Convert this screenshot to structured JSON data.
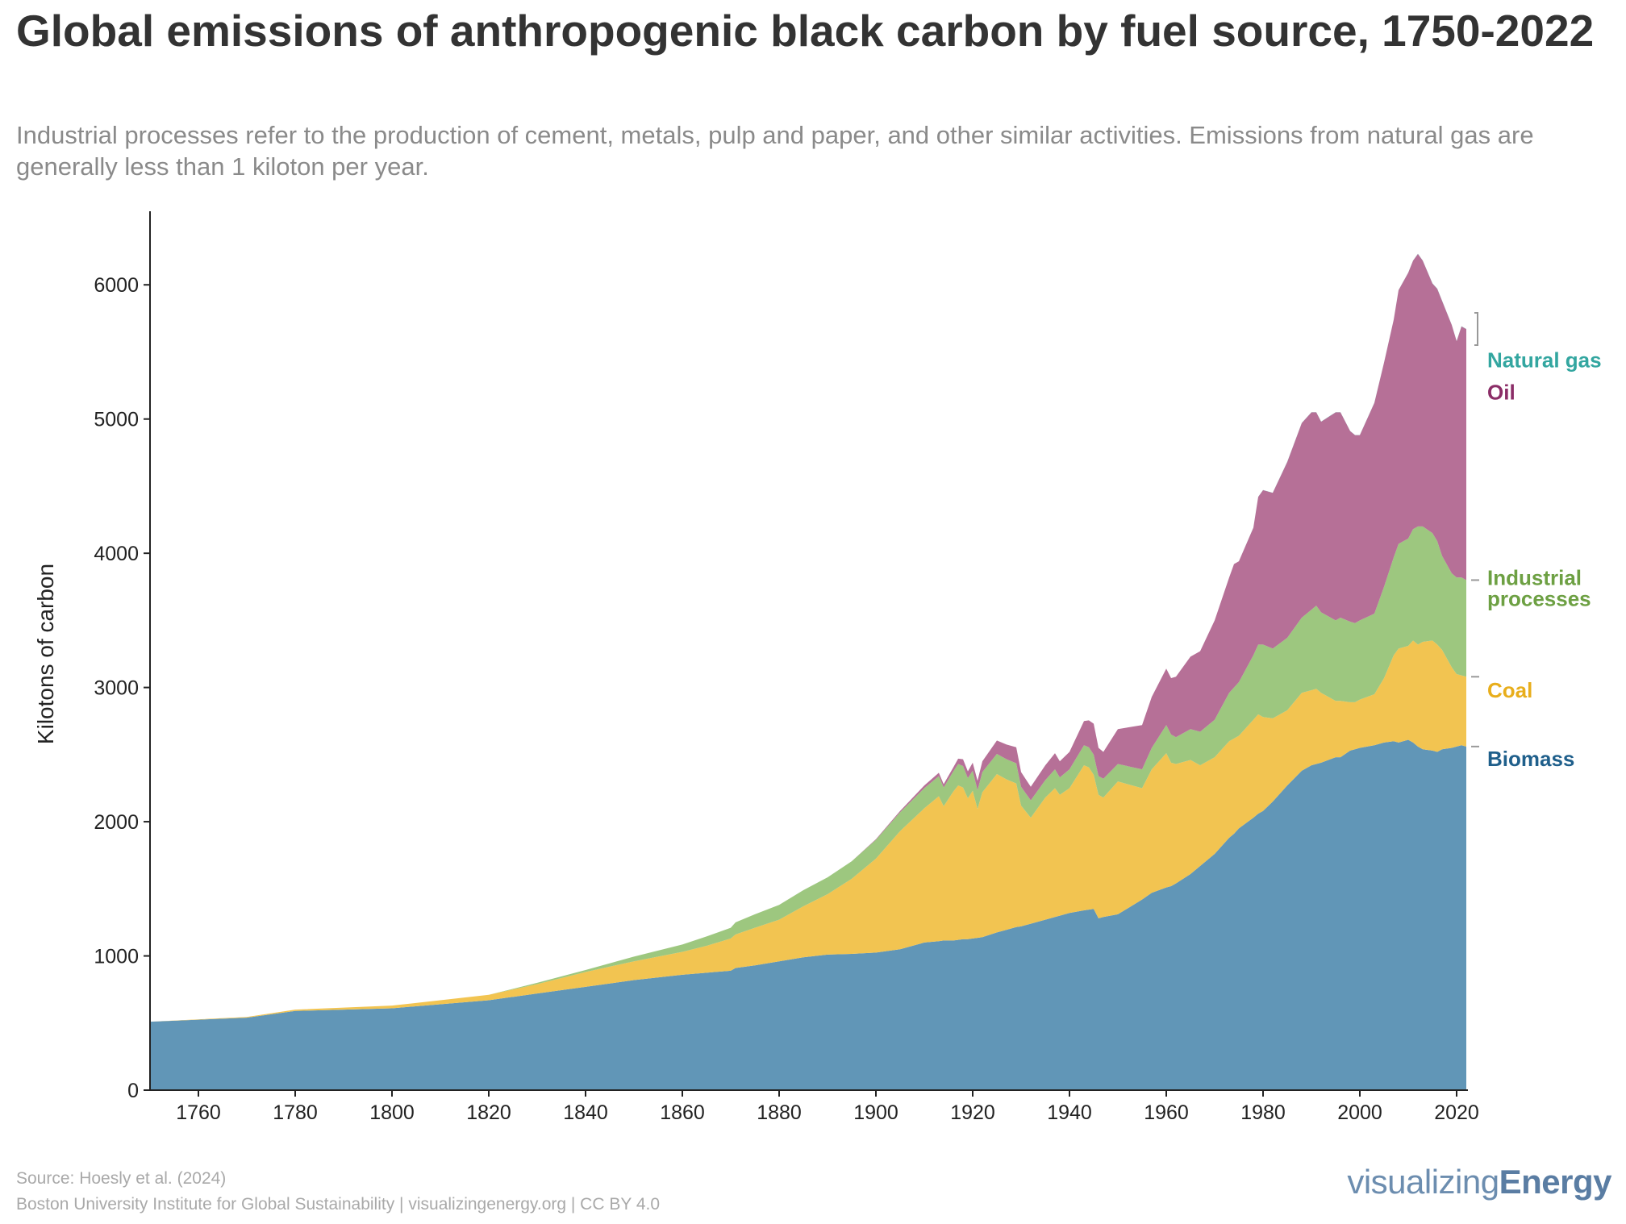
{
  "header": {
    "title": "Global emissions of anthropogenic black carbon by fuel source, 1750-2022",
    "subtitle": "Industrial processes refer to the production of cement, metals, pulp and paper, and other similar activities. Emissions from natural gas are generally less than 1 kiloton per year."
  },
  "footer": {
    "source": "Source: Hoesly et al. (2024)",
    "credit": "Boston University Institute for Global Sustainability | visualizingenergy.org | CC BY 4.0",
    "brand_light": "visualizing",
    "brand_bold": "Energy"
  },
  "colors": {
    "biomass": "#6196b7",
    "coal": "#f2c451",
    "industrial": "#9dc77f",
    "oil": "#b67097",
    "natural_gas": "#43a8a2",
    "label_biomass": "#1f5f8b",
    "label_coal": "#e8ae1c",
    "label_industrial": "#6da043",
    "label_oil": "#8b2d67",
    "label_natural_gas": "#33a6a0"
  },
  "chart_data": {
    "type": "area",
    "stacked": true,
    "xlim": [
      1750,
      2022
    ],
    "ylim": [
      0,
      6500
    ],
    "ylabel": "Kilotons of carbon",
    "xlabel": "",
    "x_ticks": [
      1760,
      1780,
      1800,
      1820,
      1840,
      1860,
      1880,
      1900,
      1920,
      1940,
      1960,
      1980,
      2000,
      2020
    ],
    "y_ticks": [
      0,
      1000,
      2000,
      3000,
      4000,
      5000,
      6000
    ],
    "x": [
      1750,
      1770,
      1780,
      1800,
      1820,
      1830,
      1840,
      1850,
      1860,
      1865,
      1870,
      1871,
      1875,
      1880,
      1885,
      1890,
      1895,
      1900,
      1905,
      1910,
      1913,
      1914,
      1916,
      1917,
      1918,
      1919,
      1920,
      1921,
      1922,
      1925,
      1927,
      1929,
      1930,
      1932,
      1935,
      1937,
      1938,
      1940,
      1943,
      1944,
      1945,
      1946,
      1947,
      1950,
      1955,
      1957,
      1960,
      1961,
      1962,
      1965,
      1967,
      1970,
      1973,
      1974,
      1975,
      1978,
      1979,
      1980,
      1982,
      1985,
      1988,
      1990,
      1991,
      1992,
      1995,
      1996,
      1998,
      1999,
      2000,
      2003,
      2005,
      2007,
      2008,
      2010,
      2011,
      2012,
      2013,
      2015,
      2016,
      2017,
      2019,
      2020,
      2021,
      2022
    ],
    "series": [
      {
        "name": "Biomass",
        "key": "biomass",
        "values": [
          510,
          540,
          590,
          610,
          670,
          720,
          770,
          820,
          860,
          875,
          890,
          910,
          930,
          960,
          990,
          1010,
          1015,
          1025,
          1050,
          1100,
          1110,
          1115,
          1115,
          1120,
          1125,
          1125,
          1130,
          1135,
          1140,
          1175,
          1195,
          1215,
          1220,
          1240,
          1270,
          1290,
          1300,
          1320,
          1340,
          1345,
          1350,
          1280,
          1290,
          1310,
          1420,
          1470,
          1510,
          1520,
          1540,
          1610,
          1670,
          1760,
          1880,
          1910,
          1950,
          2030,
          2060,
          2080,
          2150,
          2270,
          2380,
          2420,
          2430,
          2440,
          2480,
          2480,
          2530,
          2540,
          2550,
          2570,
          2590,
          2600,
          2590,
          2610,
          2590,
          2560,
          2540,
          2530,
          2520,
          2540,
          2550,
          2560,
          2570,
          2560
        ],
        "label": "Biomass",
        "label_y": 2470
      },
      {
        "name": "Coal",
        "key": "coal",
        "values": [
          0,
          5,
          10,
          20,
          40,
          70,
          110,
          140,
          170,
          200,
          240,
          250,
          280,
          310,
          380,
          450,
          560,
          700,
          880,
          1000,
          1080,
          1000,
          1110,
          1150,
          1130,
          1050,
          1100,
          960,
          1080,
          1180,
          1120,
          1070,
          900,
          790,
          910,
          960,
          900,
          930,
          1080,
          1060,
          1000,
          920,
          890,
          990,
          830,
          920,
          1000,
          920,
          890,
          850,
          750,
          720,
          720,
          710,
          690,
          730,
          740,
          700,
          620,
          560,
          580,
          560,
          560,
          520,
          420,
          420,
          360,
          350,
          360,
          380,
          480,
          640,
          700,
          700,
          760,
          760,
          800,
          820,
          800,
          740,
          600,
          540,
          520,
          520
        ],
        "label": "Coal",
        "label_y": 2980
      },
      {
        "name": "Industrial processes",
        "key": "industrial",
        "values": [
          0,
          0,
          0,
          0,
          0,
          10,
          15,
          35,
          55,
          70,
          80,
          90,
          100,
          110,
          120,
          125,
          130,
          140,
          140,
          150,
          150,
          140,
          150,
          160,
          160,
          150,
          150,
          140,
          150,
          150,
          150,
          150,
          140,
          130,
          130,
          140,
          130,
          140,
          150,
          150,
          150,
          140,
          140,
          130,
          140,
          160,
          210,
          210,
          200,
          230,
          250,
          280,
          360,
          380,
          400,
          480,
          520,
          540,
          520,
          540,
          560,
          600,
          620,
          600,
          600,
          620,
          600,
          590,
          590,
          600,
          680,
          730,
          780,
          800,
          830,
          880,
          860,
          800,
          770,
          700,
          700,
          720,
          730,
          720
        ],
        "label": "Industrial processes",
        "label_y": 3740
      },
      {
        "name": "Oil",
        "key": "oil",
        "values": [
          0,
          0,
          0,
          0,
          0,
          0,
          0,
          0,
          0,
          0,
          0,
          0,
          0,
          0,
          0,
          0,
          0,
          5,
          10,
          20,
          25,
          25,
          30,
          40,
          50,
          50,
          60,
          70,
          80,
          100,
          110,
          120,
          110,
          100,
          110,
          120,
          120,
          130,
          180,
          200,
          230,
          210,
          200,
          260,
          330,
          380,
          420,
          420,
          450,
          540,
          600,
          740,
          860,
          920,
          900,
          950,
          1100,
          1150,
          1160,
          1310,
          1450,
          1470,
          1440,
          1420,
          1550,
          1530,
          1420,
          1400,
          1380,
          1570,
          1670,
          1770,
          1890,
          1980,
          2000,
          2030,
          1980,
          1860,
          1880,
          1900,
          1850,
          1760,
          1870,
          1870
        ],
        "label": "Oil",
        "label_y": 5200
      },
      {
        "name": "Natural gas",
        "key": "natural_gas",
        "values": [
          0,
          0,
          0,
          0,
          0,
          0,
          0,
          0,
          0,
          0,
          0,
          0,
          0,
          0,
          0,
          0,
          0,
          0,
          0,
          0,
          0,
          0,
          0,
          0,
          0,
          0,
          0,
          0,
          0,
          0,
          0,
          0,
          0,
          0,
          0,
          0,
          0,
          0,
          0,
          0,
          0,
          0,
          0,
          0,
          0,
          0,
          0,
          0,
          0,
          0,
          0,
          0,
          0,
          0,
          0,
          1,
          1,
          1,
          1,
          1,
          1,
          1,
          1,
          1,
          1,
          1,
          1,
          1,
          1,
          1,
          1,
          1,
          1,
          1,
          1,
          1,
          1,
          1,
          1,
          1,
          1,
          1,
          1,
          1
        ],
        "label": "Natural gas",
        "label_y": 5440
      }
    ]
  }
}
